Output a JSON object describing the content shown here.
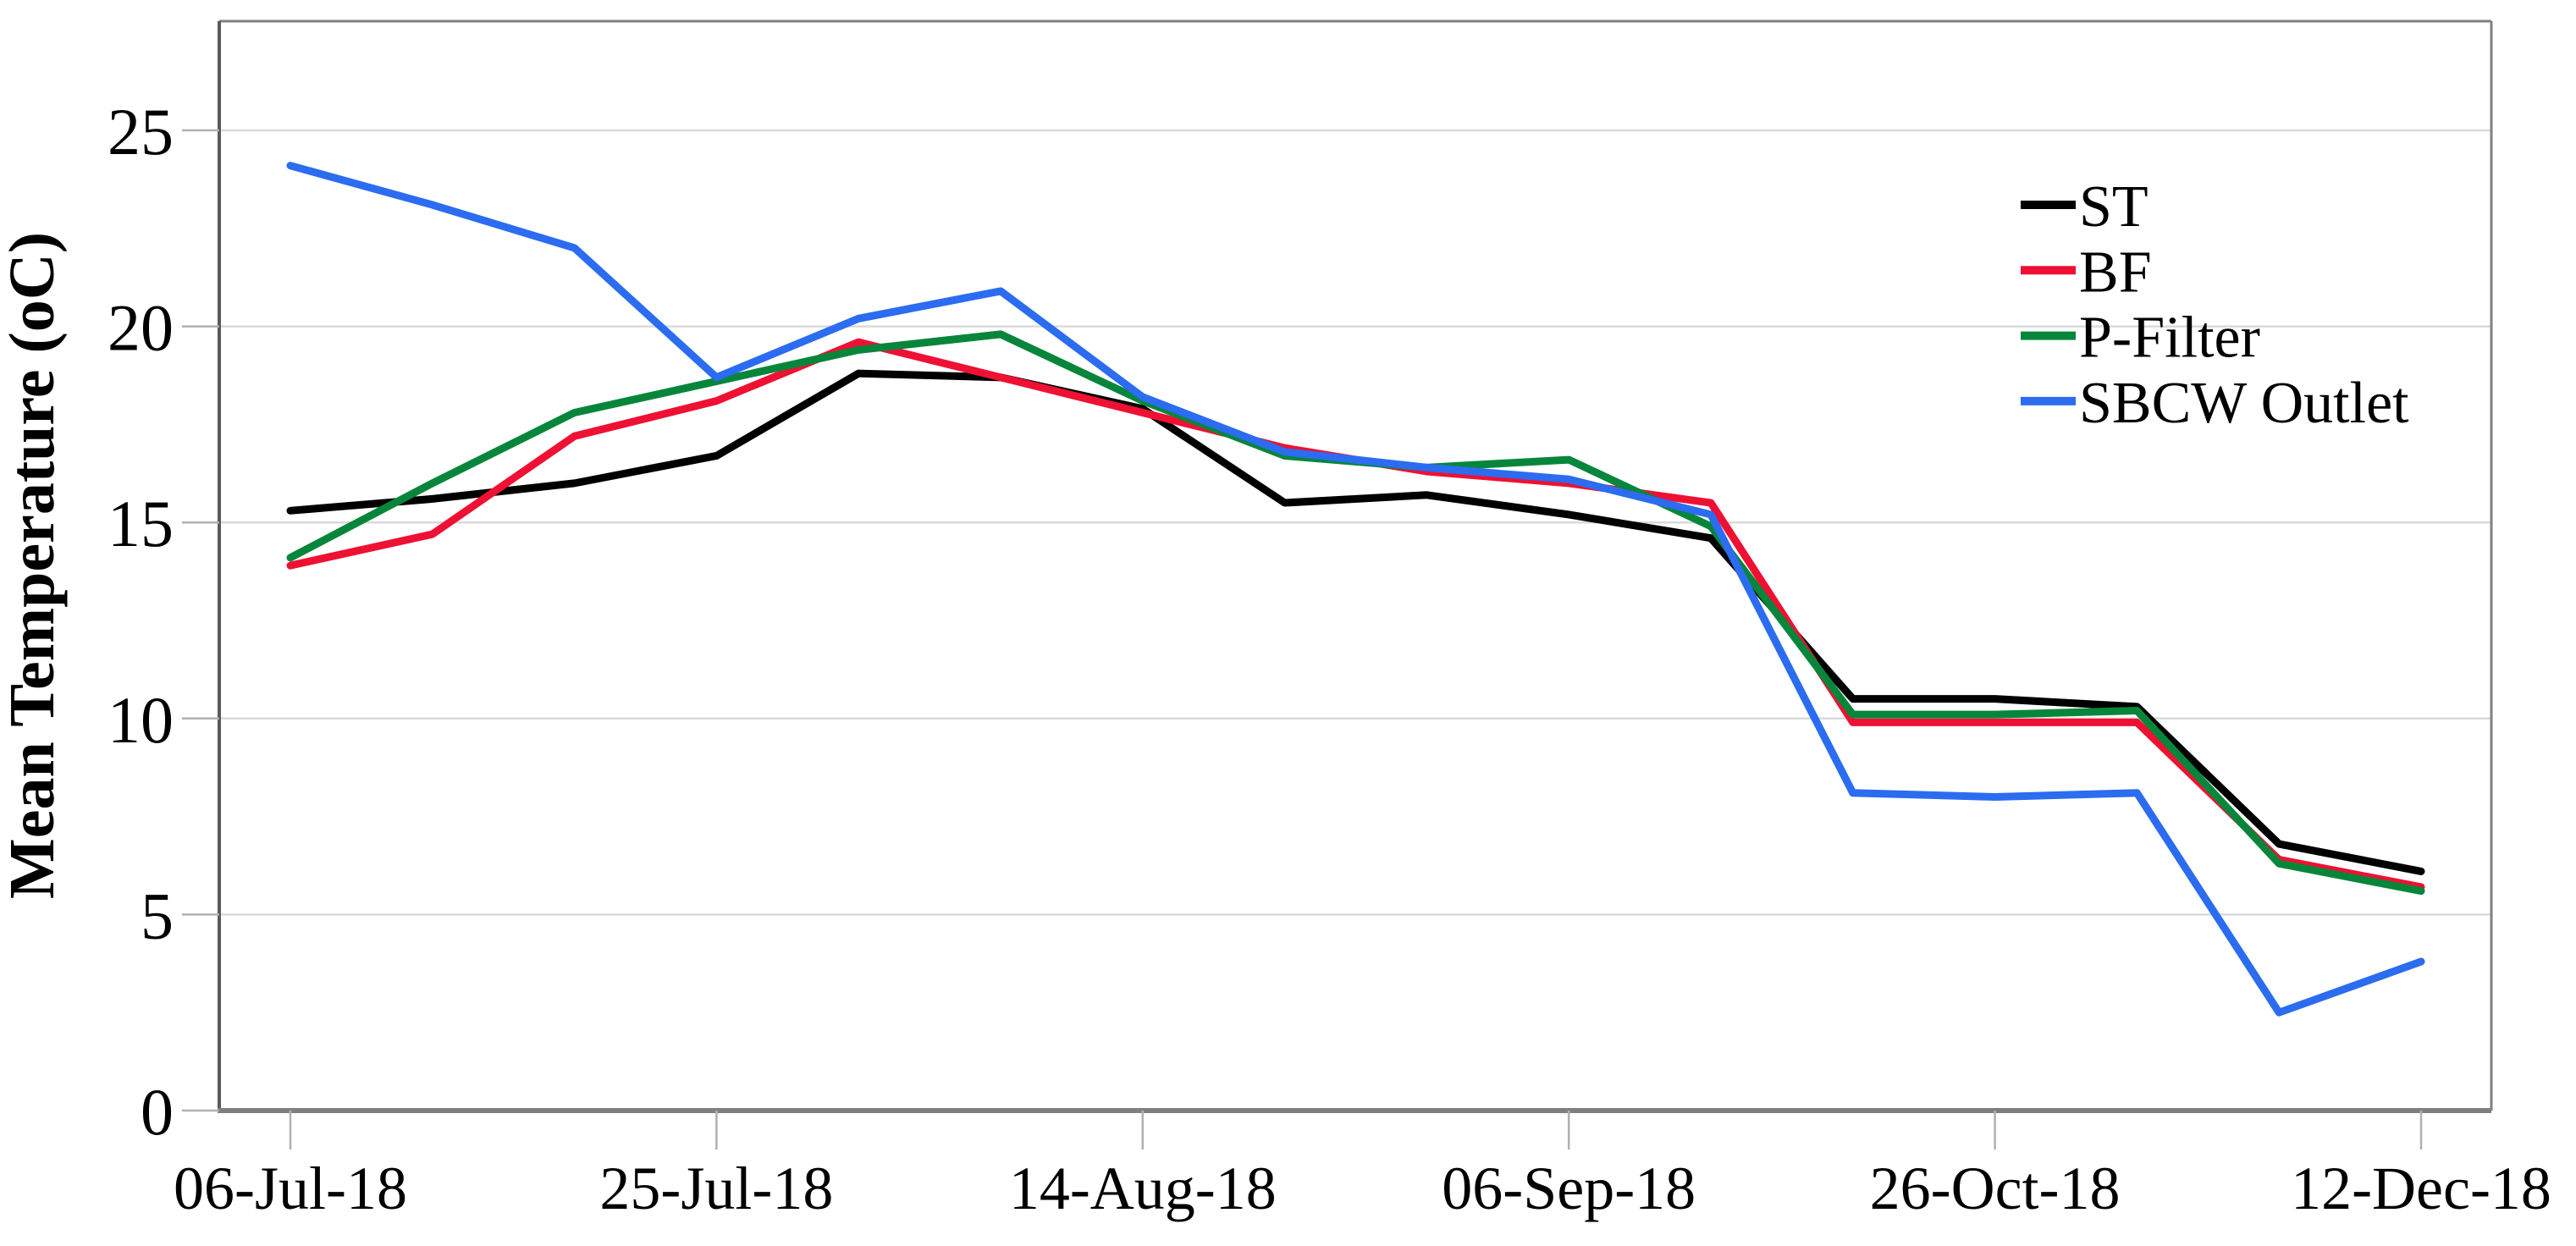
{
  "chart_data": {
    "type": "line",
    "title": "",
    "xlabel": "",
    "ylabel": "Mean Temperature (oC)",
    "ylim": [
      0,
      27.8
    ],
    "yticks": [
      0,
      5,
      10,
      15,
      20,
      25
    ],
    "grid": true,
    "legend_position": "top-right",
    "n_points": 16,
    "x_tick_labels": [
      "06-Jul-18",
      "25-Jul-18",
      "14-Aug-18",
      "06-Sep-18",
      "26-Oct-18",
      "12-Dec-18"
    ],
    "x_tick_indices": [
      0,
      3,
      6,
      9,
      12,
      15
    ],
    "series": [
      {
        "name": "ST",
        "color": "#000000",
        "values": [
          15.3,
          15.6,
          16.0,
          16.7,
          18.8,
          18.7,
          17.9,
          15.5,
          15.7,
          15.2,
          14.6,
          10.5,
          10.5,
          10.3,
          6.8,
          6.1
        ]
      },
      {
        "name": "BF",
        "color": "#ee1133",
        "values": [
          13.9,
          14.7,
          17.2,
          18.1,
          19.6,
          18.7,
          17.8,
          16.9,
          16.3,
          16.0,
          15.5,
          9.9,
          9.9,
          9.9,
          6.4,
          5.7
        ]
      },
      {
        "name": "P-Filter",
        "color": "#07863b",
        "values": [
          14.1,
          16.0,
          17.8,
          18.6,
          19.4,
          19.8,
          18.1,
          16.7,
          16.4,
          16.6,
          14.9,
          10.1,
          10.1,
          10.2,
          6.3,
          5.6
        ]
      },
      {
        "name": "SBCW Outlet",
        "color": "#2b6cf0",
        "values": [
          24.1,
          23.1,
          22.0,
          18.7,
          20.2,
          20.9,
          18.2,
          16.8,
          16.4,
          16.1,
          15.2,
          8.1,
          8.0,
          8.1,
          2.5,
          3.8
        ]
      }
    ],
    "style_colors": {
      "gridline": "#d9d9d9",
      "plot_border": "#808080",
      "left_axis": "#595959",
      "bottom_axis": "#7f7f7f",
      "tick_mark": "#b0b0b0"
    }
  }
}
